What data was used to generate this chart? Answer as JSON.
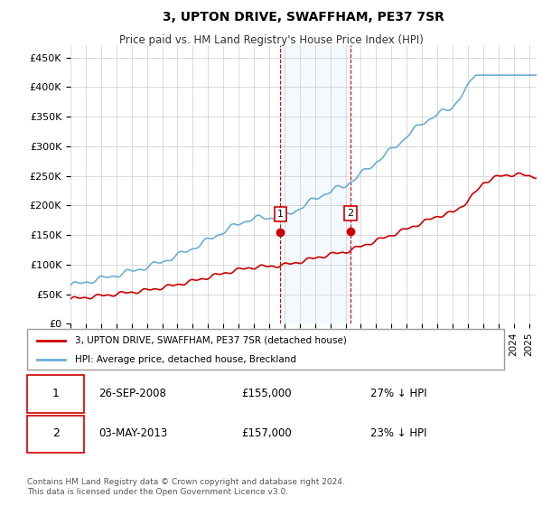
{
  "title": "3, UPTON DRIVE, SWAFFHAM, PE37 7SR",
  "subtitle": "Price paid vs. HM Land Registry's House Price Index (HPI)",
  "ylabel_ticks": [
    "£0",
    "£50K",
    "£100K",
    "£150K",
    "£200K",
    "£250K",
    "£300K",
    "£350K",
    "£400K",
    "£450K"
  ],
  "ytick_values": [
    0,
    50000,
    100000,
    150000,
    200000,
    250000,
    300000,
    350000,
    400000,
    450000
  ],
  "ylim": [
    0,
    470000
  ],
  "xlim_start": 1995.0,
  "xlim_end": 2025.5,
  "sale1_date": 2008.74,
  "sale1_price": 155000,
  "sale1_label": "1",
  "sale2_date": 2013.33,
  "sale2_price": 157000,
  "sale2_label": "2",
  "hpi_color": "#6baed6",
  "price_color": "#cc0000",
  "sale_marker_color": "#cc0000",
  "dashed_line_color": "#cc0000",
  "shaded_region_color": "#ddeeff",
  "legend_entry1": "3, UPTON DRIVE, SWAFFHAM, PE37 7SR (detached house)",
  "legend_entry2": "HPI: Average price, detached house, Breckland",
  "table_row1": [
    "1",
    "26-SEP-2008",
    "£155,000",
    "27% ↓ HPI"
  ],
  "table_row2": [
    "2",
    "03-MAY-2013",
    "£157,000",
    "23% ↓ HPI"
  ],
  "footnote": "Contains HM Land Registry data © Crown copyright and database right 2024.\nThis data is licensed under the Open Government Licence v3.0.",
  "background_color": "#ffffff",
  "grid_color": "#cccccc"
}
